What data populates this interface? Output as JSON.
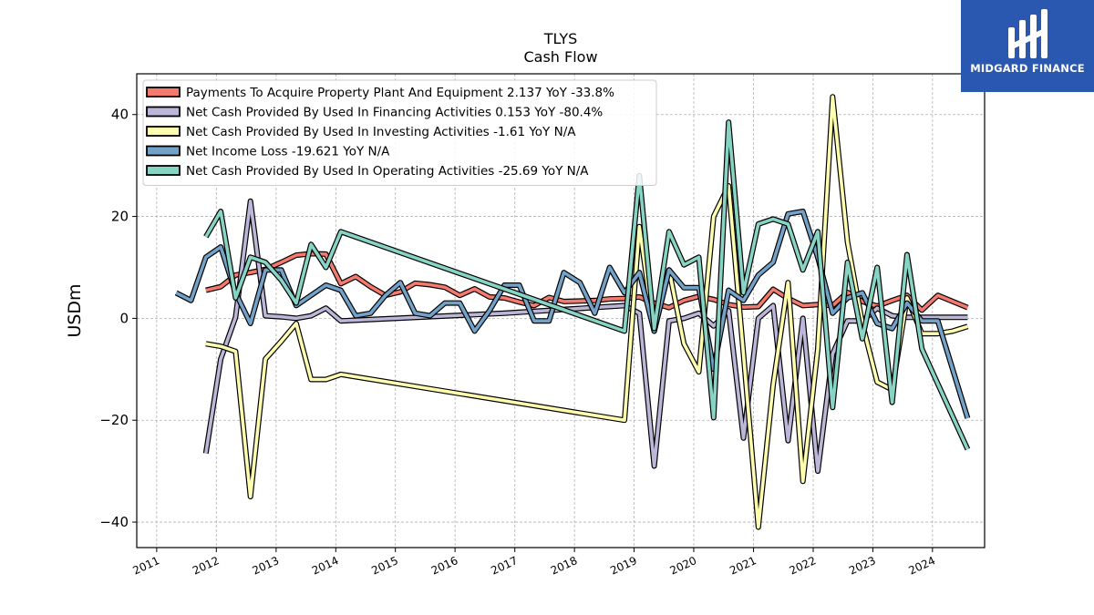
{
  "title": "TLYS",
  "subtitle": "Cash Flow",
  "brand": {
    "name": "MIDGARD FINANCE",
    "color": "#2a57b0"
  },
  "chart_data": {
    "type": "line",
    "ylabel": "USDm",
    "ylim": [
      -45,
      48
    ],
    "yticks": [
      -40,
      -20,
      0,
      20,
      40
    ],
    "xlim": [
      "2010-09-01",
      "2024-11-15"
    ],
    "xticks": [
      "2011",
      "2012",
      "2013",
      "2014",
      "2015",
      "2016",
      "2017",
      "2018",
      "2019",
      "2020",
      "2021",
      "2022",
      "2023",
      "2024"
    ],
    "grid": true,
    "legend_position": "top-left",
    "series": [
      {
        "name": "Payments To Acquire Property Plant And Equipment",
        "legend": "Payments To Acquire Property Plant And Equipment  2.137 YoY -33.8%",
        "color": "#f47a6e",
        "points": [
          [
            "2011-10-29",
            5.5
          ],
          [
            "2012-01-28",
            6.2
          ],
          [
            "2012-04-28",
            8.5
          ],
          [
            "2012-07-28",
            9.0
          ],
          [
            "2012-10-27",
            9.6
          ],
          [
            "2013-02-02",
            11.0
          ],
          [
            "2013-05-04",
            12.4
          ],
          [
            "2013-08-03",
            12.7
          ],
          [
            "2013-11-02",
            12.6
          ],
          [
            "2014-02-01",
            6.8
          ],
          [
            "2014-05-03",
            8.2
          ],
          [
            "2014-08-02",
            6.2
          ],
          [
            "2014-11-01",
            4.5
          ],
          [
            "2015-01-31",
            5.2
          ],
          [
            "2015-05-02",
            6.9
          ],
          [
            "2015-08-01",
            6.6
          ],
          [
            "2015-10-31",
            6.1
          ],
          [
            "2016-01-30",
            4.5
          ],
          [
            "2016-04-30",
            5.8
          ],
          [
            "2016-07-30",
            4.2
          ],
          [
            "2016-10-29",
            4.0
          ],
          [
            "2017-01-28",
            3.2
          ],
          [
            "2017-04-29",
            2.5
          ],
          [
            "2017-07-29",
            4.1
          ],
          [
            "2017-10-28",
            3.3
          ],
          [
            "2018-02-03",
            3.4
          ],
          [
            "2018-05-05",
            3.5
          ],
          [
            "2018-08-04",
            3.8
          ],
          [
            "2018-11-03",
            3.9
          ],
          [
            "2019-02-02",
            4.2
          ],
          [
            "2019-05-04",
            3.0
          ],
          [
            "2019-08-03",
            2.1
          ],
          [
            "2019-11-02",
            3.5
          ],
          [
            "2020-02-01",
            4.3
          ],
          [
            "2020-05-02",
            3.7
          ],
          [
            "2020-08-01",
            2.7
          ],
          [
            "2020-10-31",
            2.2
          ],
          [
            "2021-01-30",
            2.3
          ],
          [
            "2021-05-01",
            5.7
          ],
          [
            "2021-07-31",
            3.9
          ],
          [
            "2021-10-30",
            2.5
          ],
          [
            "2022-01-29",
            2.7
          ],
          [
            "2022-04-30",
            2.5
          ],
          [
            "2022-07-30",
            5.1
          ],
          [
            "2022-10-29",
            3.3
          ],
          [
            "2023-01-28",
            2.4
          ],
          [
            "2023-04-29",
            3.5
          ],
          [
            "2023-07-29",
            4.5
          ],
          [
            "2023-10-28",
            1.6
          ],
          [
            "2024-02-03",
            4.5
          ],
          [
            "2024-05-04",
            3.3
          ],
          [
            "2024-08-03",
            2.1
          ]
        ]
      },
      {
        "name": "Net Cash Provided By Used In Financing Activities",
        "legend": "Net Cash Provided By Used In Financing Activities  0.153 YoY -80.4%",
        "color": "#bcb6d8",
        "points": [
          [
            "2011-10-29",
            -26.5
          ],
          [
            "2012-01-28",
            -8.0
          ],
          [
            "2012-04-28",
            0.2
          ],
          [
            "2012-07-28",
            23.0
          ],
          [
            "2012-10-27",
            0.5
          ],
          [
            "2013-02-02",
            0.3
          ],
          [
            "2013-05-04",
            0.0
          ],
          [
            "2013-08-03",
            0.5
          ],
          [
            "2013-11-02",
            2.0
          ],
          [
            "2014-02-01",
            -0.5
          ],
          [
            "2016-10-29",
            1.0
          ],
          [
            "2018-11-03",
            2.5
          ],
          [
            "2019-02-02",
            1.0
          ],
          [
            "2019-05-04",
            -29.0
          ],
          [
            "2019-08-03",
            -0.5
          ],
          [
            "2019-11-02",
            0.0
          ],
          [
            "2020-02-01",
            1.0
          ],
          [
            "2020-05-02",
            -1.5
          ],
          [
            "2020-08-01",
            1.5
          ],
          [
            "2020-10-31",
            -23.5
          ],
          [
            "2021-01-30",
            0.0
          ],
          [
            "2021-05-01",
            2.5
          ],
          [
            "2021-07-31",
            -24.0
          ],
          [
            "2021-10-30",
            0.0
          ],
          [
            "2022-01-29",
            -30.0
          ],
          [
            "2022-04-30",
            -7.0
          ],
          [
            "2022-07-30",
            -0.5
          ],
          [
            "2022-10-29",
            -0.5
          ],
          [
            "2023-01-28",
            2.0
          ],
          [
            "2023-04-29",
            0.5
          ],
          [
            "2023-07-29",
            0.2
          ],
          [
            "2023-10-28",
            0.2
          ],
          [
            "2024-02-03",
            0.2
          ],
          [
            "2024-05-04",
            0.2
          ],
          [
            "2024-08-03",
            0.2
          ]
        ]
      },
      {
        "name": "Net Cash Provided By Used In Investing Activities",
        "legend": "Net Cash Provided By Used In Investing Activities  -1.61 YoY N/A",
        "color": "#ffffb0",
        "points": [
          [
            "2011-10-29",
            -5.0
          ],
          [
            "2012-01-28",
            -5.5
          ],
          [
            "2012-04-28",
            -6.5
          ],
          [
            "2012-07-28",
            -35.0
          ],
          [
            "2012-10-27",
            -8.0
          ],
          [
            "2013-02-02",
            -4.5
          ],
          [
            "2013-05-04",
            -1.0
          ],
          [
            "2013-08-03",
            -12.0
          ],
          [
            "2013-11-02",
            -12.0
          ],
          [
            "2014-02-01",
            -11.0
          ],
          [
            "2018-11-03",
            -20.0
          ],
          [
            "2019-02-02",
            18.0
          ],
          [
            "2019-05-04",
            -2.5
          ],
          [
            "2019-08-03",
            9.5
          ],
          [
            "2019-11-02",
            -5.0
          ],
          [
            "2020-02-01",
            -10.5
          ],
          [
            "2020-05-02",
            20.0
          ],
          [
            "2020-08-01",
            26.0
          ],
          [
            "2020-10-31",
            -7.0
          ],
          [
            "2021-01-30",
            -41.0
          ],
          [
            "2021-05-01",
            -13.0
          ],
          [
            "2021-07-31",
            7.0
          ],
          [
            "2021-10-30",
            -32.0
          ],
          [
            "2022-01-29",
            -6.0
          ],
          [
            "2022-04-30",
            43.5
          ],
          [
            "2022-07-30",
            15.0
          ],
          [
            "2022-10-29",
            -1.0
          ],
          [
            "2023-01-28",
            -12.5
          ],
          [
            "2023-04-29",
            -14.0
          ],
          [
            "2023-07-29",
            4.0
          ],
          [
            "2023-10-28",
            -3.0
          ],
          [
            "2024-02-03",
            -3.0
          ],
          [
            "2024-05-04",
            -2.5
          ],
          [
            "2024-08-03",
            -1.6
          ]
        ]
      },
      {
        "name": "Net Income Loss",
        "legend": "Net Income Loss  -19.621 YoY N/A",
        "color": "#73a2c8",
        "points": [
          [
            "2011-04-30",
            5.0
          ],
          [
            "2011-07-30",
            3.5
          ],
          [
            "2011-10-29",
            12.0
          ],
          [
            "2012-01-28",
            14.0
          ],
          [
            "2012-04-28",
            5.0
          ],
          [
            "2012-07-28",
            -1.0
          ],
          [
            "2012-10-27",
            9.5
          ],
          [
            "2013-02-02",
            9.5
          ],
          [
            "2013-05-04",
            2.5
          ],
          [
            "2013-08-03",
            4.5
          ],
          [
            "2013-11-02",
            6.5
          ],
          [
            "2014-02-01",
            5.5
          ],
          [
            "2014-05-03",
            0.5
          ],
          [
            "2014-08-02",
            1.0
          ],
          [
            "2014-11-01",
            4.5
          ],
          [
            "2015-01-31",
            7.0
          ],
          [
            "2015-05-02",
            1.0
          ],
          [
            "2015-08-01",
            0.5
          ],
          [
            "2015-10-31",
            3.0
          ],
          [
            "2016-01-30",
            3.0
          ],
          [
            "2016-04-30",
            -2.5
          ],
          [
            "2016-07-30",
            1.5
          ],
          [
            "2016-10-29",
            6.5
          ],
          [
            "2017-01-28",
            6.5
          ],
          [
            "2017-04-29",
            -0.5
          ],
          [
            "2017-07-29",
            -0.5
          ],
          [
            "2017-10-28",
            9.0
          ],
          [
            "2018-02-03",
            7.0
          ],
          [
            "2018-05-05",
            1.0
          ],
          [
            "2018-08-04",
            10.0
          ],
          [
            "2018-11-03",
            5.0
          ],
          [
            "2019-02-02",
            9.0
          ],
          [
            "2019-05-04",
            -2.5
          ],
          [
            "2019-08-03",
            9.5
          ],
          [
            "2019-11-02",
            6.0
          ],
          [
            "2020-02-01",
            6.0
          ],
          [
            "2020-05-02",
            -10.0
          ],
          [
            "2020-08-01",
            5.5
          ],
          [
            "2020-10-31",
            3.5
          ],
          [
            "2021-01-30",
            8.5
          ],
          [
            "2021-05-01",
            11.0
          ],
          [
            "2021-07-31",
            20.5
          ],
          [
            "2021-10-30",
            21.0
          ],
          [
            "2022-01-29",
            12.0
          ],
          [
            "2022-04-30",
            1.0
          ],
          [
            "2022-07-30",
            4.0
          ],
          [
            "2022-10-29",
            5.0
          ],
          [
            "2023-01-28",
            -1.0
          ],
          [
            "2023-04-29",
            -2.0
          ],
          [
            "2023-07-29",
            3.0
          ],
          [
            "2023-10-28",
            -0.5
          ],
          [
            "2024-02-03",
            -0.5
          ],
          [
            "2024-08-03",
            -19.6
          ]
        ]
      },
      {
        "name": "Net Cash Provided By Used In Operating Activities",
        "legend": "Net Cash Provided By Used In Operating Activities  -25.69 YoY N/A",
        "color": "#88d4c4",
        "points": [
          [
            "2011-10-29",
            16.0
          ],
          [
            "2012-01-28",
            21.0
          ],
          [
            "2012-04-28",
            4.0
          ],
          [
            "2012-07-28",
            12.0
          ],
          [
            "2012-10-27",
            11.0
          ],
          [
            "2013-02-02",
            7.5
          ],
          [
            "2013-05-04",
            3.0
          ],
          [
            "2013-08-03",
            14.5
          ],
          [
            "2013-11-02",
            10.0
          ],
          [
            "2014-02-01",
            17.0
          ],
          [
            "2018-11-03",
            -2.5
          ],
          [
            "2019-02-02",
            28.0
          ],
          [
            "2019-05-04",
            -2.0
          ],
          [
            "2019-08-03",
            17.0
          ],
          [
            "2019-11-02",
            10.5
          ],
          [
            "2020-02-01",
            12.0
          ],
          [
            "2020-05-02",
            -19.5
          ],
          [
            "2020-08-01",
            38.5
          ],
          [
            "2020-10-31",
            5.0
          ],
          [
            "2021-01-30",
            18.5
          ],
          [
            "2021-05-01",
            19.5
          ],
          [
            "2021-07-31",
            18.5
          ],
          [
            "2021-10-30",
            9.5
          ],
          [
            "2022-01-29",
            17.0
          ],
          [
            "2022-04-30",
            -17.5
          ],
          [
            "2022-07-30",
            11.0
          ],
          [
            "2022-10-29",
            -4.0
          ],
          [
            "2023-01-28",
            10.0
          ],
          [
            "2023-04-29",
            -16.5
          ],
          [
            "2023-07-29",
            12.5
          ],
          [
            "2023-10-28",
            -6.0
          ],
          [
            "2024-08-03",
            -25.7
          ]
        ]
      }
    ]
  }
}
